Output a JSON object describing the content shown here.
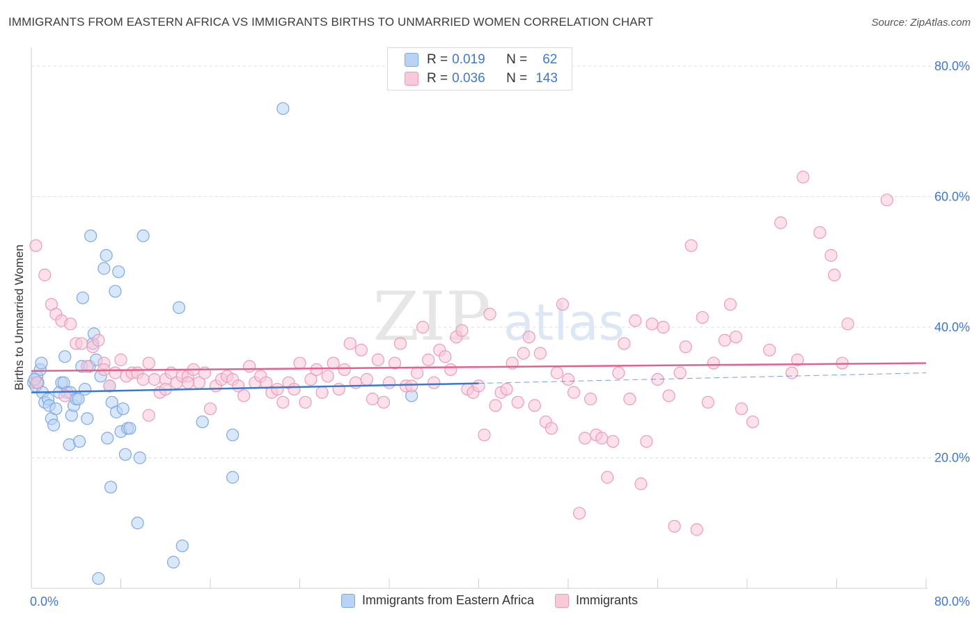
{
  "title": "IMMIGRANTS FROM EASTERN AFRICA VS IMMIGRANTS BIRTHS TO UNMARRIED WOMEN CORRELATION CHART",
  "source": "Source: ZipAtlas.com",
  "watermark": {
    "zip": "ZIP",
    "atlas": "atlas"
  },
  "legend_top": {
    "series1": {
      "r_label": "R =",
      "r_value": "0.019",
      "n_label": "N =",
      "n_value": "62"
    },
    "series2": {
      "r_label": "R =",
      "r_value": "0.036",
      "n_label": "N =",
      "n_value": "143"
    }
  },
  "colors": {
    "blue_fill": "#b9d3f5",
    "blue_stroke": "#7ea8e0",
    "blue_line": "#3a78d0",
    "pink_fill": "#f9c9d8",
    "pink_stroke": "#ec9ab5",
    "pink_line": "#e5608a",
    "tick_label": "#3f78c8"
  },
  "chart_data": {
    "type": "scatter",
    "xlabel": "",
    "ylabel": "Births to Unmarried Women",
    "xlim": [
      0,
      80
    ],
    "ylim": [
      0,
      80
    ],
    "x_tick_labels": [
      "0.0%",
      "80.0%"
    ],
    "y_ticks": [
      20,
      40,
      60,
      80
    ],
    "y_tick_labels": [
      "20.0%",
      "40.0%",
      "60.0%",
      "80.0%"
    ],
    "grid": "horizontal dashed",
    "legend_position": "bottom",
    "series": [
      {
        "name": "Immigrants from Eastern Africa",
        "color": "#b9d3f5",
        "trend": {
          "x": [
            0,
            40
          ],
          "y": [
            30.0,
            31.4
          ]
        },
        "trend_extension": {
          "x": [
            40,
            80
          ],
          "y": [
            31.4,
            33.0
          ]
        },
        "points": [
          [
            0.2,
            31.5
          ],
          [
            0.4,
            31.0
          ],
          [
            0.5,
            32.5
          ],
          [
            0.6,
            31.5
          ],
          [
            0.8,
            33.5
          ],
          [
            0.9,
            34.5
          ],
          [
            1.0,
            30.0
          ],
          [
            1.2,
            28.5
          ],
          [
            1.5,
            29.0
          ],
          [
            1.6,
            28.0
          ],
          [
            1.8,
            26.0
          ],
          [
            2.0,
            25.0
          ],
          [
            2.2,
            27.5
          ],
          [
            2.5,
            30.0
          ],
          [
            2.7,
            31.5
          ],
          [
            2.9,
            31.5
          ],
          [
            3.0,
            35.5
          ],
          [
            3.2,
            30.0
          ],
          [
            3.4,
            22.0
          ],
          [
            3.5,
            30.0
          ],
          [
            3.6,
            26.5
          ],
          [
            3.8,
            28.0
          ],
          [
            4.0,
            29.0
          ],
          [
            4.2,
            29.0
          ],
          [
            4.3,
            22.5
          ],
          [
            4.5,
            34.0
          ],
          [
            4.6,
            44.5
          ],
          [
            4.8,
            30.5
          ],
          [
            5.0,
            26.0
          ],
          [
            5.2,
            34.0
          ],
          [
            5.3,
            54.0
          ],
          [
            5.5,
            37.5
          ],
          [
            5.6,
            39.0
          ],
          [
            5.8,
            35.0
          ],
          [
            6.0,
            1.5
          ],
          [
            6.2,
            32.5
          ],
          [
            6.5,
            49.0
          ],
          [
            6.7,
            51.0
          ],
          [
            6.8,
            23.0
          ],
          [
            7.0,
            31.0
          ],
          [
            7.1,
            15.5
          ],
          [
            7.2,
            28.5
          ],
          [
            7.5,
            45.5
          ],
          [
            7.6,
            27.0
          ],
          [
            7.8,
            48.5
          ],
          [
            8.0,
            24.0
          ],
          [
            8.2,
            27.5
          ],
          [
            8.4,
            20.5
          ],
          [
            8.6,
            24.5
          ],
          [
            8.8,
            24.5
          ],
          [
            9.5,
            10.0
          ],
          [
            9.7,
            20.0
          ],
          [
            10.0,
            54.0
          ],
          [
            12.7,
            4.0
          ],
          [
            13.2,
            43.0
          ],
          [
            13.5,
            6.5
          ],
          [
            15.3,
            25.5
          ],
          [
            18.0,
            23.5
          ],
          [
            18.0,
            17.0
          ],
          [
            22.5,
            73.5
          ],
          [
            34.0,
            29.5
          ],
          [
            0.3,
            32.0
          ]
        ]
      },
      {
        "name": "Immigrants",
        "color": "#f9c9d8",
        "trend": {
          "x": [
            0,
            80
          ],
          "y": [
            33.3,
            34.5
          ]
        },
        "points": [
          [
            0.4,
            52.5
          ],
          [
            1.2,
            48.0
          ],
          [
            1.8,
            43.5
          ],
          [
            2.2,
            42.0
          ],
          [
            2.7,
            41.0
          ],
          [
            3.5,
            40.5
          ],
          [
            4.0,
            37.5
          ],
          [
            4.5,
            37.5
          ],
          [
            5.0,
            34.0
          ],
          [
            5.5,
            37.0
          ],
          [
            6.0,
            38.0
          ],
          [
            6.5,
            34.5
          ],
          [
            7.0,
            31.0
          ],
          [
            7.5,
            33.0
          ],
          [
            8.0,
            35.0
          ],
          [
            8.5,
            32.5
          ],
          [
            9.0,
            33.0
          ],
          [
            9.5,
            33.0
          ],
          [
            10.0,
            32.0
          ],
          [
            10.5,
            34.5
          ],
          [
            11.0,
            32.0
          ],
          [
            11.5,
            30.0
          ],
          [
            12.0,
            32.0
          ],
          [
            12.5,
            33.0
          ],
          [
            13.0,
            31.5
          ],
          [
            13.5,
            32.5
          ],
          [
            14.0,
            32.5
          ],
          [
            14.5,
            33.5
          ],
          [
            15.0,
            31.5
          ],
          [
            15.5,
            33.0
          ],
          [
            16.0,
            27.5
          ],
          [
            16.5,
            31.0
          ],
          [
            17.0,
            32.0
          ],
          [
            17.5,
            32.5
          ],
          [
            18.0,
            32.0
          ],
          [
            18.5,
            31.0
          ],
          [
            19.0,
            29.5
          ],
          [
            19.5,
            34.0
          ],
          [
            20.0,
            31.5
          ],
          [
            20.5,
            32.5
          ],
          [
            21.0,
            31.5
          ],
          [
            21.5,
            30.0
          ],
          [
            22.0,
            30.5
          ],
          [
            22.5,
            28.5
          ],
          [
            23.0,
            31.5
          ],
          [
            23.5,
            30.5
          ],
          [
            24.0,
            34.5
          ],
          [
            24.5,
            28.5
          ],
          [
            25.0,
            32.0
          ],
          [
            25.5,
            33.5
          ],
          [
            26.0,
            30.0
          ],
          [
            26.5,
            32.5
          ],
          [
            27.0,
            34.5
          ],
          [
            27.5,
            30.5
          ],
          [
            28.0,
            33.5
          ],
          [
            28.5,
            37.5
          ],
          [
            29.0,
            31.5
          ],
          [
            29.5,
            36.5
          ],
          [
            30.0,
            32.0
          ],
          [
            30.5,
            29.0
          ],
          [
            31.0,
            35.0
          ],
          [
            31.5,
            28.5
          ],
          [
            32.0,
            31.5
          ],
          [
            32.5,
            34.5
          ],
          [
            33.0,
            37.5
          ],
          [
            33.5,
            31.0
          ],
          [
            34.0,
            31.0
          ],
          [
            34.5,
            33.0
          ],
          [
            35.0,
            40.0
          ],
          [
            35.5,
            35.0
          ],
          [
            36.0,
            31.5
          ],
          [
            36.5,
            36.5
          ],
          [
            37.0,
            35.5
          ],
          [
            37.5,
            33.5
          ],
          [
            38.0,
            38.5
          ],
          [
            38.5,
            39.5
          ],
          [
            39.0,
            30.5
          ],
          [
            39.5,
            30.0
          ],
          [
            40.0,
            31.0
          ],
          [
            40.5,
            23.5
          ],
          [
            41.0,
            42.0
          ],
          [
            41.5,
            28.0
          ],
          [
            42.0,
            30.0
          ],
          [
            42.5,
            30.5
          ],
          [
            43.0,
            34.5
          ],
          [
            43.5,
            28.5
          ],
          [
            44.0,
            36.0
          ],
          [
            44.5,
            38.5
          ],
          [
            45.0,
            28.0
          ],
          [
            45.5,
            36.0
          ],
          [
            46.0,
            25.5
          ],
          [
            46.5,
            24.5
          ],
          [
            47.0,
            33.0
          ],
          [
            47.5,
            43.5
          ],
          [
            48.0,
            32.0
          ],
          [
            48.5,
            30.0
          ],
          [
            49.0,
            11.5
          ],
          [
            49.5,
            23.0
          ],
          [
            50.0,
            29.0
          ],
          [
            50.5,
            23.5
          ],
          [
            51.0,
            23.0
          ],
          [
            51.5,
            17.0
          ],
          [
            52.0,
            22.5
          ],
          [
            52.5,
            33.0
          ],
          [
            53.0,
            37.5
          ],
          [
            53.5,
            29.0
          ],
          [
            54.0,
            41.0
          ],
          [
            54.5,
            16.0
          ],
          [
            55.0,
            22.5
          ],
          [
            55.5,
            40.5
          ],
          [
            56.0,
            32.0
          ],
          [
            56.5,
            40.0
          ],
          [
            57.0,
            29.5
          ],
          [
            57.5,
            9.5
          ],
          [
            58.0,
            33.0
          ],
          [
            58.5,
            37.0
          ],
          [
            59.0,
            52.5
          ],
          [
            59.5,
            9.0
          ],
          [
            60.0,
            41.5
          ],
          [
            60.5,
            28.5
          ],
          [
            61.0,
            34.5
          ],
          [
            62.0,
            38.0
          ],
          [
            62.5,
            43.5
          ],
          [
            63.0,
            38.5
          ],
          [
            63.5,
            27.5
          ],
          [
            64.5,
            25.5
          ],
          [
            66.0,
            36.5
          ],
          [
            67.0,
            56.0
          ],
          [
            68.0,
            33.0
          ],
          [
            68.5,
            35.0
          ],
          [
            69.0,
            63.0
          ],
          [
            70.5,
            54.5
          ],
          [
            71.5,
            51.0
          ],
          [
            71.8,
            48.0
          ],
          [
            72.5,
            34.5
          ],
          [
            73.0,
            40.5
          ],
          [
            76.5,
            59.5
          ],
          [
            0.5,
            31.5
          ],
          [
            3.0,
            29.5
          ],
          [
            6.5,
            33.5
          ],
          [
            10.5,
            26.5
          ],
          [
            12.0,
            30.5
          ],
          [
            14.0,
            31.5
          ]
        ]
      }
    ]
  }
}
